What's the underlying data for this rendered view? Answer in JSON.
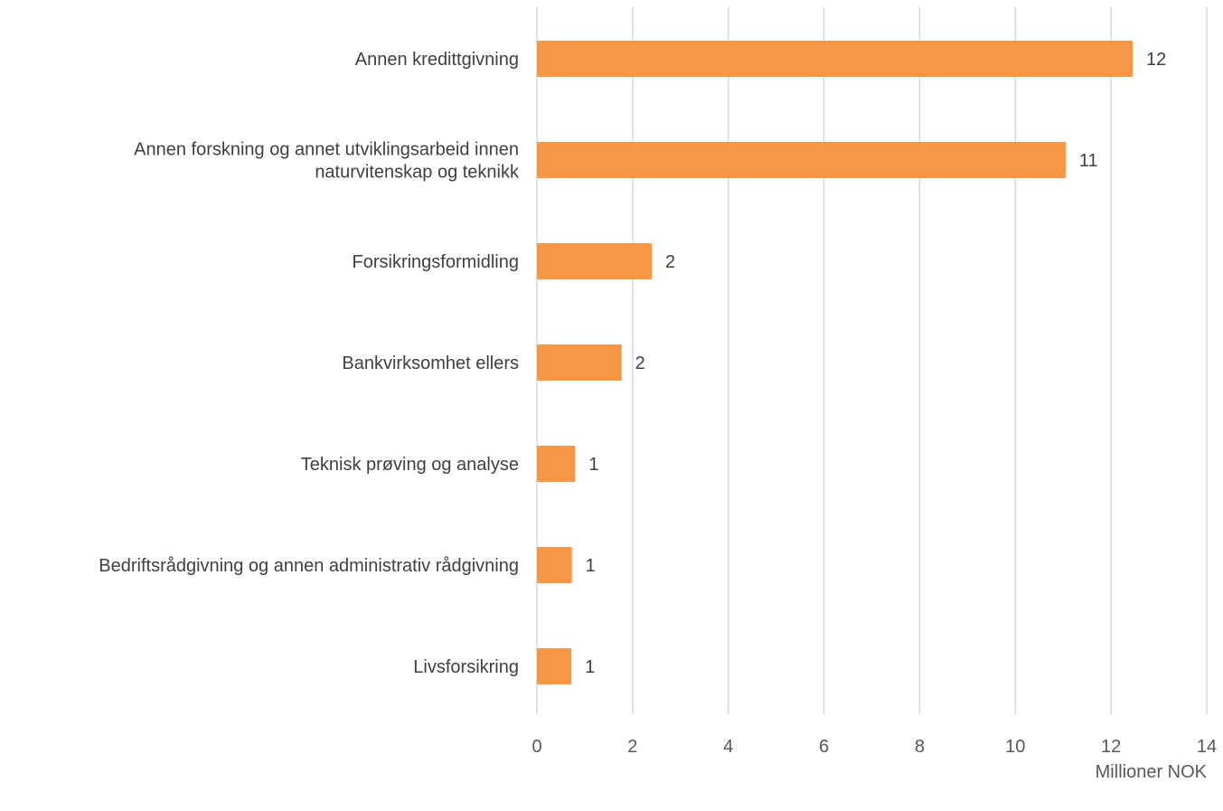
{
  "chart_data": {
    "type": "bar",
    "orientation": "horizontal",
    "categories": [
      [
        "Annen kredittgivning"
      ],
      [
        "Annen forskning og annet utviklingsarbeid innen",
        "naturvitenskap og teknikk"
      ],
      [
        "Forsikringsformidling"
      ],
      [
        "Bankvirksomhet ellers"
      ],
      [
        "Teknisk prøving og analyse"
      ],
      [
        "Bedriftsrådgivning og annen administrativ rådgivning"
      ],
      [
        "Livsforsikring"
      ]
    ],
    "values": [
      12.45,
      11.05,
      2.4,
      1.77,
      0.8,
      0.73,
      0.72
    ],
    "data_labels": [
      "12",
      "11",
      "2",
      "2",
      "1",
      "1",
      "1"
    ],
    "xlim": [
      0,
      14
    ],
    "x_ticks": [
      0,
      2,
      4,
      6,
      8,
      10,
      12,
      14
    ],
    "unit_label": "Millioner NOK",
    "grid": true,
    "legend": "none",
    "colors": {
      "bar": "#f79646",
      "grid": "#d9d9d9",
      "text": "#404040",
      "tick_text": "#595959"
    }
  }
}
